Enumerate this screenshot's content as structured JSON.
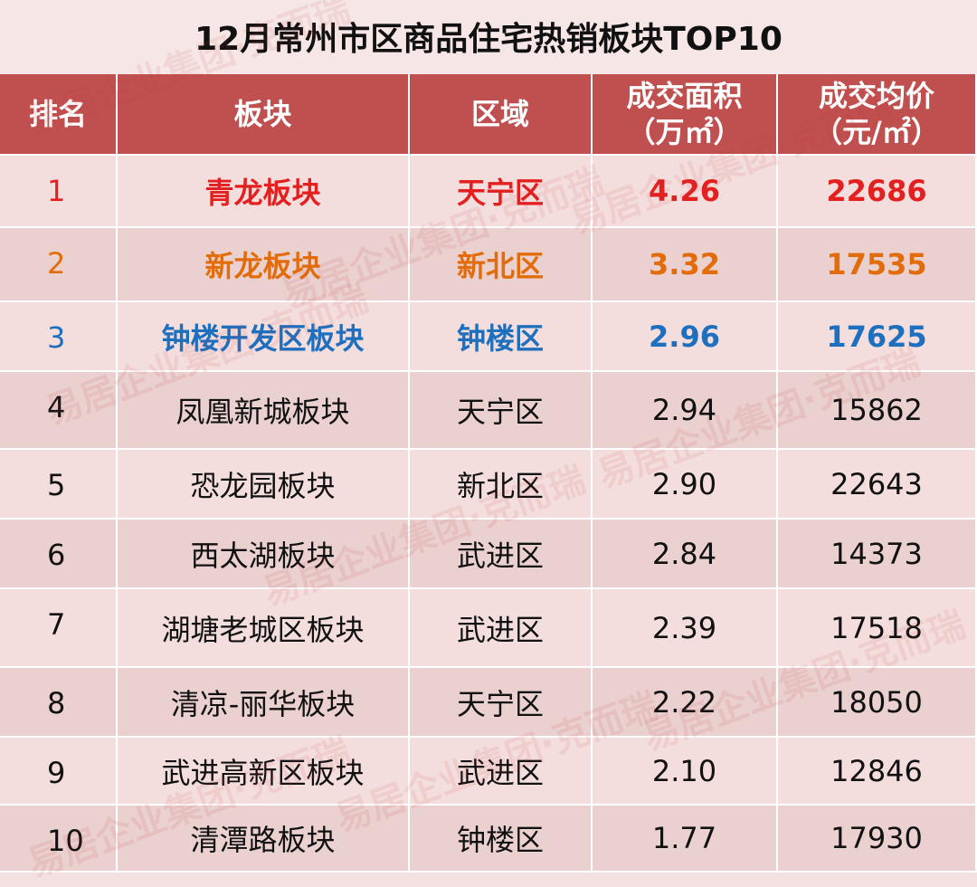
{
  "title": "12月常州市区商品住宅热销板块TOP10",
  "watermark": "易居企业集团·克而瑞",
  "table": {
    "headers": [
      [
        "排名"
      ],
      [
        "板块"
      ],
      [
        "区域"
      ],
      [
        "成交面积",
        "（万㎡）"
      ],
      [
        "成交均价",
        "（元/㎡）"
      ]
    ],
    "rows": [
      [
        "1",
        "青龙板块",
        "天宁区",
        "4.26",
        "22686"
      ],
      [
        "2",
        "新龙板块",
        "新北区",
        "3.32",
        "17535"
      ],
      [
        "3",
        "钟楼开发区板块",
        "钟楼区",
        "2.96",
        "17625"
      ],
      [
        "4",
        "凤凰新城板块",
        "天宁区",
        "2.94",
        "15862"
      ],
      [
        "5",
        "恐龙园板块",
        "新北区",
        "2.90",
        "22643"
      ],
      [
        "6",
        "西太湖板块",
        "武进区",
        "2.84",
        "14373"
      ],
      [
        "7",
        "湖塘老城区板块",
        "武进区",
        "2.39",
        "17518"
      ],
      [
        "8",
        "清凉-丽华板块",
        "天宁区",
        "2.22",
        "18050"
      ],
      [
        "9",
        "武进高新区板块",
        "武进区",
        "2.10",
        "12846"
      ],
      [
        "10",
        "清潭路板块",
        "钟楼区",
        "1.77",
        "17930"
      ]
    ],
    "highlight_colors": [
      "#e3201f",
      "#e36c0a",
      "#1f6fbf"
    ]
  }
}
